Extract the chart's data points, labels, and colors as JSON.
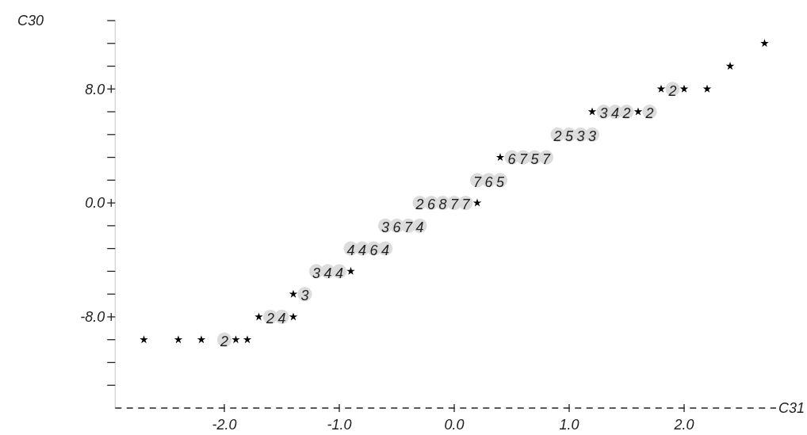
{
  "chart_data": {
    "type": "scatter",
    "xlabel": "C31",
    "ylabel": "C30",
    "xlim": [
      -2.95,
      2.8
    ],
    "ylim": [
      -14.4,
      12.8
    ],
    "xticks": [
      {
        "value": -2,
        "label": "-2.0"
      },
      {
        "value": -1,
        "label": "-1.0"
      },
      {
        "value": 0,
        "label": "0.0"
      },
      {
        "value": 1,
        "label": "1.0"
      },
      {
        "value": 2,
        "label": "2.0"
      }
    ],
    "yticks": [
      {
        "value": 12.8,
        "label": null
      },
      {
        "value": 11.2,
        "label": null
      },
      {
        "value": 9.6,
        "label": null
      },
      {
        "value": 8,
        "label": "8.0"
      },
      {
        "value": 6.4,
        "label": null
      },
      {
        "value": 4.8,
        "label": null
      },
      {
        "value": 3.2,
        "label": null
      },
      {
        "value": 1.6,
        "label": null
      },
      {
        "value": 0,
        "label": "0.0"
      },
      {
        "value": -1.6,
        "label": null
      },
      {
        "value": -3.2,
        "label": null
      },
      {
        "value": -4.8,
        "label": null
      },
      {
        "value": -6.4,
        "label": null
      },
      {
        "value": -8,
        "label": "-8.0"
      },
      {
        "value": -9.6,
        "label": null
      },
      {
        "value": -11.2,
        "label": null
      },
      {
        "value": -12.8,
        "label": null
      }
    ],
    "grid": false,
    "marker": "star",
    "series": [
      {
        "color": "#dcdcdc",
        "marker": "circle",
        "x": [
          1.9,
          1.3,
          1.4,
          1.5,
          1.7,
          0.9,
          1.0,
          1.1,
          1.2,
          0.5,
          0.6,
          0.7,
          0.8,
          0.2,
          0.3,
          0.4,
          -0.3,
          -0.2,
          -0.1,
          0.0,
          0.1,
          -0.6,
          -0.5,
          -0.4,
          -0.3,
          -0.9,
          -0.8,
          -0.7,
          -0.6,
          -1.2,
          -1.1,
          -1.0,
          -1.3,
          -1.6,
          -1.5,
          -2.0
        ],
        "values": [
          8,
          6.4,
          6.4,
          6.4,
          6.4,
          4.8,
          4.8,
          4.8,
          4.8,
          3.2,
          3.2,
          3.2,
          3.2,
          1.6,
          1.6,
          1.6,
          0,
          0,
          0,
          0,
          0,
          -1.6,
          -1.6,
          -1.6,
          -1.6,
          -3.2,
          -3.2,
          -3.2,
          -3.2,
          -4.8,
          -4.8,
          -4.8,
          -6.4,
          -8,
          -8,
          -9.6
        ]
      },
      {
        "color": "#000000",
        "x": [
          2.7,
          2.4,
          1.8,
          2.0,
          2.2,
          1.2,
          1.6,
          0.4,
          0.2,
          -0.9,
          -1.4,
          -1.7,
          -1.4,
          -2.7,
          -2.4,
          -2.2,
          -1.9,
          -1.8
        ],
        "values": [
          11.2,
          9.6,
          8,
          8,
          8,
          6.4,
          6.4,
          3.2,
          0,
          -4.8,
          -6.4,
          -8,
          -8,
          -9.6,
          -9.6,
          -9.6,
          -9.6,
          -9.6
        ]
      }
    ],
    "annotations": [
      {
        "text": "2",
        "x": 1.9,
        "y": 8
      },
      {
        "text": "3",
        "x": 1.3,
        "y": 6.4
      },
      {
        "text": "4",
        "x": 1.4,
        "y": 6.4
      },
      {
        "text": "2",
        "x": 1.5,
        "y": 6.4
      },
      {
        "text": "2",
        "x": 1.7,
        "y": 6.4
      },
      {
        "text": "2",
        "x": 0.9,
        "y": 4.8
      },
      {
        "text": "5",
        "x": 1.0,
        "y": 4.8
      },
      {
        "text": "3",
        "x": 1.1,
        "y": 4.8
      },
      {
        "text": "3",
        "x": 1.2,
        "y": 4.8
      },
      {
        "text": "6",
        "x": 0.5,
        "y": 3.2
      },
      {
        "text": "7",
        "x": 0.6,
        "y": 3.2
      },
      {
        "text": "5",
        "x": 0.7,
        "y": 3.2
      },
      {
        "text": "7",
        "x": 0.8,
        "y": 3.2
      },
      {
        "text": "7",
        "x": 0.2,
        "y": 1.6
      },
      {
        "text": "6",
        "x": 0.3,
        "y": 1.6
      },
      {
        "text": "5",
        "x": 0.4,
        "y": 1.6
      },
      {
        "text": "2",
        "x": -0.3,
        "y": 0
      },
      {
        "text": "6",
        "x": -0.2,
        "y": 0
      },
      {
        "text": "8",
        "x": -0.1,
        "y": 0
      },
      {
        "text": "7",
        "x": 0.0,
        "y": 0
      },
      {
        "text": "7",
        "x": 0.1,
        "y": 0
      },
      {
        "text": "3",
        "x": -0.6,
        "y": -1.6
      },
      {
        "text": "6",
        "x": -0.5,
        "y": -1.6
      },
      {
        "text": "7",
        "x": -0.4,
        "y": -1.6
      },
      {
        "text": "4",
        "x": -0.3,
        "y": -1.6
      },
      {
        "text": "4",
        "x": -0.9,
        "y": -3.2
      },
      {
        "text": "4",
        "x": -0.8,
        "y": -3.2
      },
      {
        "text": "6",
        "x": -0.7,
        "y": -3.2
      },
      {
        "text": "4",
        "x": -0.6,
        "y": -3.2
      },
      {
        "text": "3",
        "x": -1.2,
        "y": -4.8
      },
      {
        "text": "4",
        "x": -1.1,
        "y": -4.8
      },
      {
        "text": "4",
        "x": -1.0,
        "y": -4.8
      },
      {
        "text": "3",
        "x": -1.3,
        "y": -6.4
      },
      {
        "text": "2",
        "x": -1.6,
        "y": -8
      },
      {
        "text": "4",
        "x": -1.5,
        "y": -8
      },
      {
        "text": "2",
        "x": -2.0,
        "y": -9.6
      }
    ]
  }
}
